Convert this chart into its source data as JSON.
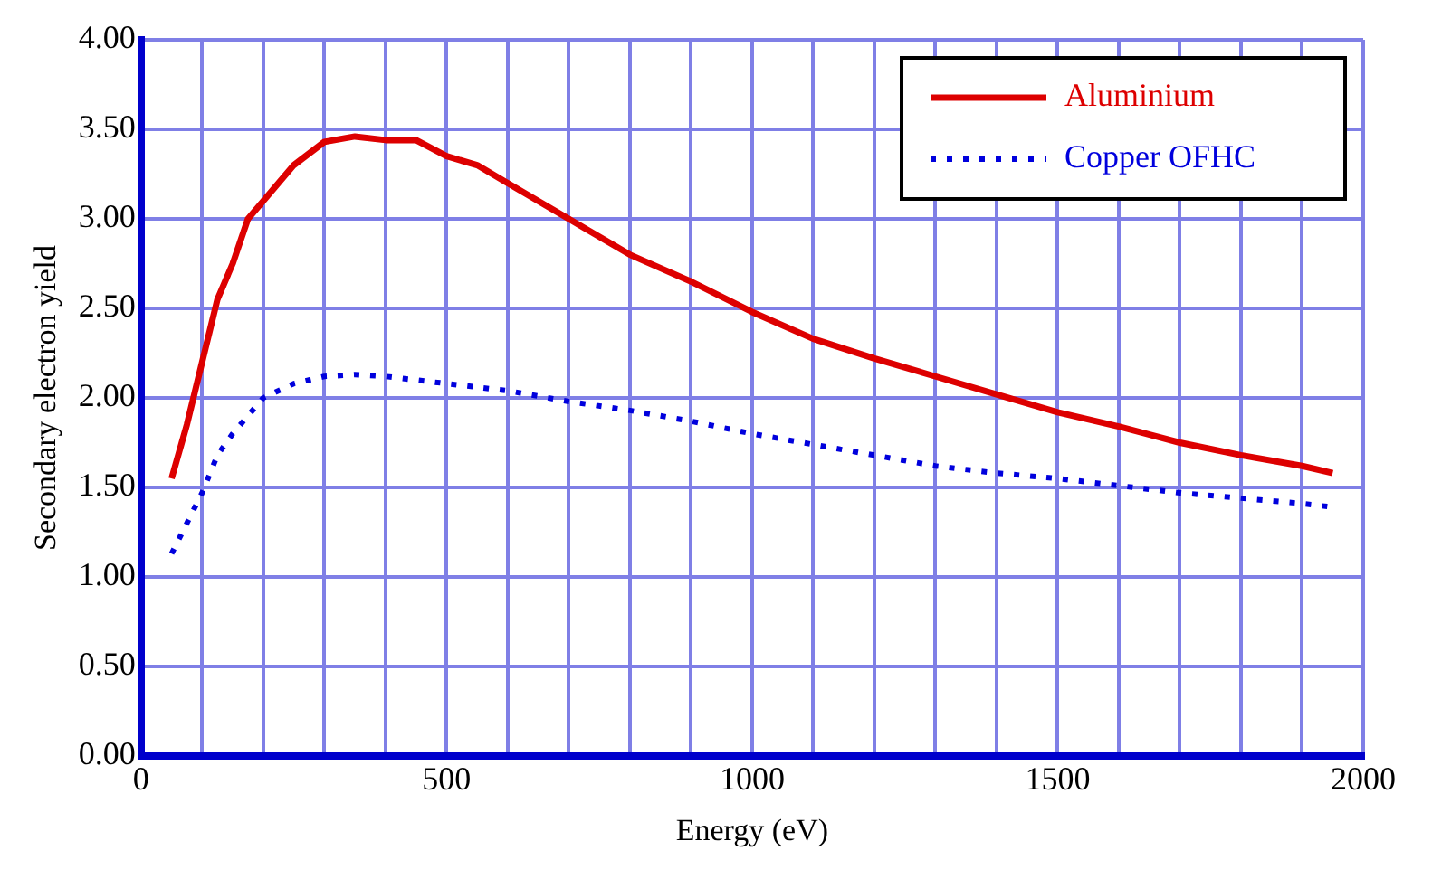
{
  "chart_data": {
    "type": "line",
    "xlabel": "Energy (eV)",
    "ylabel": "Secondary electron yield",
    "xlim": [
      0,
      2000
    ],
    "xticks": [
      0,
      {
        "value": 100,
        "label": null
      },
      {
        "value": 200,
        "label": null
      },
      {
        "value": 300,
        "label": null
      },
      {
        "value": 400,
        "label": null
      },
      500,
      {
        "value": 600,
        "label": null
      },
      {
        "value": 700,
        "label": null
      },
      {
        "value": 800,
        "label": null
      },
      {
        "value": 900,
        "label": null
      },
      1000,
      {
        "value": 1100,
        "label": null
      },
      {
        "value": 1200,
        "label": null
      },
      {
        "value": 1300,
        "label": null
      },
      {
        "value": 1400,
        "label": null
      },
      1500,
      {
        "value": 1600,
        "label": null
      },
      {
        "value": 1700,
        "label": null
      },
      {
        "value": 1800,
        "label": null
      },
      {
        "value": 1900,
        "label": null
      },
      2000
    ],
    "ylim": [
      0,
      4
    ],
    "yticks": [
      {
        "value": 0,
        "label": "0.00"
      },
      {
        "value": 0.5,
        "label": "0.50"
      },
      {
        "value": 1,
        "label": "1.00"
      },
      {
        "value": 1.5,
        "label": "1.50"
      },
      {
        "value": 2,
        "label": "2.00"
      },
      {
        "value": 2.5,
        "label": "2.50"
      },
      {
        "value": 3,
        "label": "3.00"
      },
      {
        "value": 3.5,
        "label": "3.50"
      },
      {
        "value": 4,
        "label": "4.00"
      }
    ],
    "grid": true,
    "legend": "top right",
    "marker": "none",
    "series": [
      {
        "name": "Aluminium",
        "color": "#dd0000",
        "line_style": "solid",
        "x": [
          50,
          75,
          100,
          125,
          150,
          175,
          200,
          250,
          300,
          350,
          400,
          450,
          500,
          550,
          600,
          650,
          700,
          800,
          900,
          1000,
          1100,
          1200,
          1300,
          1400,
          1500,
          1600,
          1700,
          1800,
          1900,
          1950
        ],
        "values": [
          1.55,
          1.85,
          2.2,
          2.55,
          2.75,
          3.0,
          3.1,
          3.3,
          3.43,
          3.46,
          3.44,
          3.44,
          3.35,
          3.3,
          3.2,
          3.1,
          3.0,
          2.8,
          2.65,
          2.48,
          2.33,
          2.22,
          2.12,
          2.02,
          1.92,
          1.84,
          1.75,
          1.68,
          1.62,
          1.58
        ]
      },
      {
        "name": "Copper OFHC",
        "color": "#0000dd",
        "line_style": "dotted",
        "x": [
          50,
          75,
          100,
          125,
          150,
          200,
          250,
          300,
          350,
          400,
          500,
          600,
          700,
          800,
          900,
          1000,
          1100,
          1200,
          1300,
          1400,
          1500,
          1600,
          1700,
          1800,
          1900,
          1950
        ],
        "values": [
          1.13,
          1.3,
          1.47,
          1.68,
          1.8,
          2.0,
          2.08,
          2.12,
          2.13,
          2.12,
          2.08,
          2.04,
          1.98,
          1.93,
          1.87,
          1.8,
          1.74,
          1.68,
          1.62,
          1.58,
          1.55,
          1.51,
          1.47,
          1.44,
          1.41,
          1.39
        ]
      }
    ]
  }
}
